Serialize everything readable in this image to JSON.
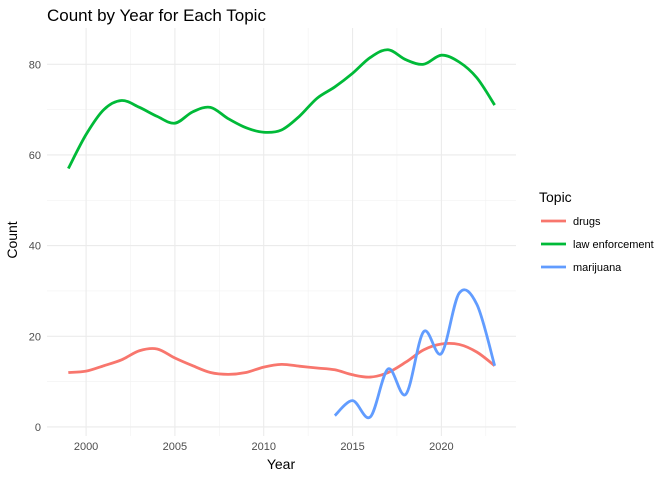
{
  "chart_data": {
    "type": "line",
    "title": "Count by Year for Each Topic",
    "xlabel": "Year",
    "ylabel": "Count",
    "xlim": [
      1997.8,
      2024.2
    ],
    "ylim": [
      -2,
      88
    ],
    "x_ticks": [
      2000,
      2005,
      2010,
      2015,
      2020
    ],
    "y_ticks": [
      0,
      20,
      40,
      60,
      80
    ],
    "grid": true,
    "smoothed": true,
    "legend": {
      "title": "Topic",
      "position": "right"
    },
    "series": [
      {
        "name": "drugs",
        "color": "#F8766D",
        "x": [
          1999,
          2000,
          2001,
          2002,
          2003,
          2004,
          2005,
          2006,
          2007,
          2008,
          2009,
          2010,
          2011,
          2012,
          2013,
          2014,
          2015,
          2016,
          2017,
          2018,
          2019,
          2020,
          2021,
          2022,
          2023
        ],
        "y": [
          12,
          12.3,
          13.5,
          14.8,
          16.8,
          17.2,
          15.2,
          13.5,
          12,
          11.6,
          12,
          13.2,
          13.8,
          13.4,
          13,
          12.6,
          11.5,
          11,
          12,
          14.3,
          17,
          18.3,
          18.2,
          16.5,
          13.5
        ]
      },
      {
        "name": "law enforcement",
        "color": "#00BA38",
        "x": [
          1999,
          2000,
          2001,
          2002,
          2003,
          2004,
          2005,
          2006,
          2007,
          2008,
          2009,
          2010,
          2011,
          2012,
          2013,
          2014,
          2015,
          2016,
          2017,
          2018,
          2019,
          2020,
          2021,
          2022,
          2023
        ],
        "y": [
          57,
          64.5,
          70,
          72,
          70.5,
          68.5,
          67,
          69.5,
          70.5,
          68,
          66,
          65,
          65.5,
          68.5,
          72.5,
          75,
          78,
          81.5,
          83.2,
          81,
          80,
          82,
          80.5,
          77,
          71
        ]
      },
      {
        "name": "marijuana",
        "color": "#619CFF",
        "x": [
          2014,
          2015,
          2016,
          2017,
          2018,
          2019,
          2020,
          2021,
          2022,
          2023
        ],
        "y": [
          2.5,
          5.8,
          2.2,
          12.8,
          7.2,
          21,
          16.2,
          29.5,
          27,
          13.5
        ]
      }
    ]
  }
}
